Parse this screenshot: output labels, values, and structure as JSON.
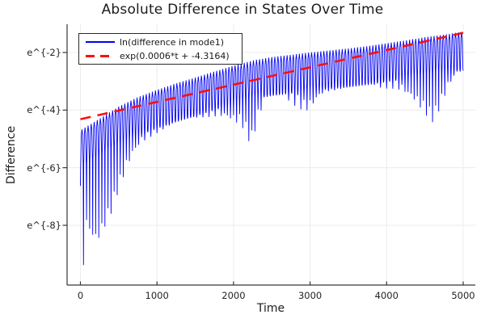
{
  "chart_data": {
    "type": "line",
    "title": "Absolute Difference in States Over Time",
    "xlabel": "Time",
    "ylabel": "Difference",
    "background_color": "#ffffff",
    "grid": true,
    "grid_color": "#ececec",
    "axis_color": "#36363a",
    "legend_position": "top-left",
    "x_range": [
      -160,
      5090
    ],
    "y_scale": "ln",
    "y_range_ln": [
      -10.06,
      -1.02
    ],
    "xticks": [
      0,
      1000,
      2000,
      3000,
      4000,
      5000
    ],
    "yticks": [
      {
        "v": -2,
        "label": "e^{-2}"
      },
      {
        "v": -4,
        "label": "e^{-4}"
      },
      {
        "v": -6,
        "label": "e^{-6}"
      },
      {
        "v": -8,
        "label": "e^{-8}"
      }
    ],
    "series": [
      {
        "name": "ln(difference in mode1)",
        "style": "oscillatory-envelope",
        "color": "#0000f2",
        "line_width": 0.9,
        "t_range": [
          0,
          5000
        ],
        "dip_spacing": 40,
        "dip_jitter": 0.45,
        "envelope_top": {
          "t0": 0,
          "dt": 250,
          "v": [
            -4.7,
            -4.3,
            -3.88,
            -3.55,
            -3.3,
            -3.07,
            -2.87,
            -2.66,
            -2.46,
            -2.28,
            -2.16,
            -2.08,
            -2.0,
            -1.93,
            -1.86,
            -1.78,
            -1.68,
            -1.58,
            -1.47,
            -1.38,
            -1.28
          ]
        },
        "envelope_bottom": {
          "t": [
            0,
            30,
            80,
            150,
            220,
            300,
            400,
            500,
            600,
            700,
            800,
            900,
            1000,
            1100,
            1200,
            1300,
            1400,
            1500,
            1600,
            1700,
            1800,
            1900,
            2000,
            2100,
            2160,
            2230,
            2300,
            2370,
            2450,
            2550,
            2650,
            2750,
            2850,
            2950,
            3050,
            3150,
            3250,
            3350,
            3450,
            3550,
            3650,
            3750,
            3850,
            3950,
            4050,
            4150,
            4250,
            4350,
            4450,
            4550,
            4600,
            4650,
            4700,
            4800,
            4900,
            5000
          ],
          "v": [
            -7.0,
            -9.85,
            -8.1,
            -8.5,
            -8.65,
            -8.2,
            -7.6,
            -6.8,
            -6.1,
            -5.6,
            -5.25,
            -5.0,
            -4.8,
            -4.65,
            -4.55,
            -4.45,
            -4.4,
            -4.3,
            -4.25,
            -4.25,
            -4.3,
            -4.4,
            -4.5,
            -4.55,
            -4.85,
            -5.25,
            -4.55,
            -4.0,
            -3.6,
            -3.45,
            -3.55,
            -3.75,
            -3.95,
            -4.1,
            -3.9,
            -3.6,
            -3.4,
            -3.3,
            -3.22,
            -3.15,
            -3.12,
            -3.15,
            -3.2,
            -3.25,
            -3.25,
            -3.35,
            -3.55,
            -3.75,
            -4.0,
            -4.3,
            -4.42,
            -4.25,
            -3.95,
            -3.35,
            -2.95,
            -2.7
          ]
        }
      },
      {
        "name": "exp(0.0006*t + -4.3164)",
        "style": "dashed-line",
        "color": "#fb0f0f",
        "line_width": 2.6,
        "slope": 0.0006,
        "intercept": -4.3164,
        "t_range": [
          0,
          5000
        ]
      }
    ]
  }
}
